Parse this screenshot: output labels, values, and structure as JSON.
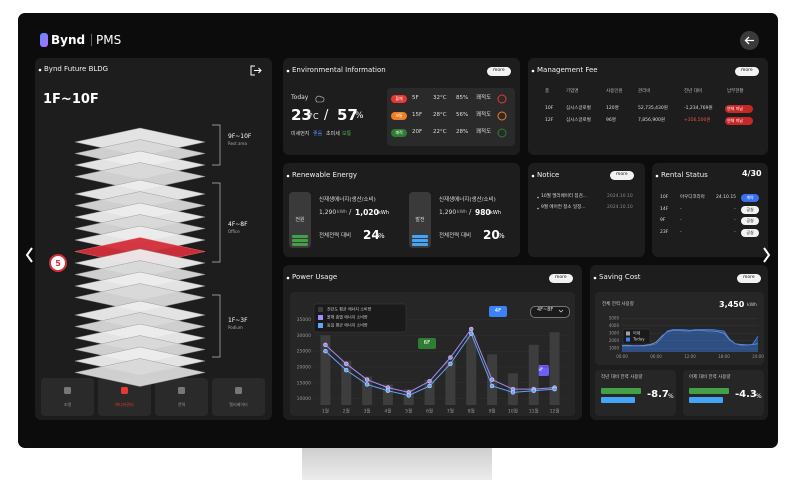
{
  "header": {
    "brand": "Bynd",
    "product": "PMS"
  },
  "building": {
    "title": "Bynd Future BLDG",
    "range": "1F~10F",
    "badge": "5",
    "zones": [
      {
        "floors": "9F~10F",
        "name": "Rest area"
      },
      {
        "floors": "4F~8F",
        "name": "Office"
      },
      {
        "floors": "1F~3F",
        "name": "Podium"
      }
    ],
    "tabs": [
      "조명",
      "에너지관리",
      "전력",
      "엘리베이터"
    ]
  },
  "environment": {
    "title": "Environmental Information",
    "more": "more",
    "today": "Today",
    "temp": "23",
    "temp_unit": "°C",
    "sep": "/",
    "humidity": "57",
    "humidity_unit": "%",
    "air": [
      "미세먼지",
      "좋음",
      "초미세",
      "보통"
    ],
    "rows": [
      [
        "불쾌",
        "5F",
        "32°C",
        "85%",
        "쾌적도"
      ],
      [
        "보통",
        "15F",
        "28°C",
        "56%",
        "쾌적도"
      ],
      [
        "쾌적",
        "20F",
        "22°C",
        "28%",
        "쾌적도"
      ]
    ]
  },
  "management_fee": {
    "title": "Management Fee",
    "more": "more",
    "headers": [
      "층",
      "기업명",
      "사용인원",
      "관리비",
      "전년 대비",
      "납부현황"
    ],
    "rows": [
      [
        "10F",
        "심시스글로벌",
        "120명",
        "52,735,430원",
        "-1,234,769원",
        "연체 미납"
      ],
      [
        "12F",
        "심시스글로벌",
        "96명",
        "7,856,900원",
        "+356,500원",
        "연체 미납"
      ]
    ]
  },
  "renewable": {
    "title": "Renewable Energy",
    "items": [
      {
        "tag": "전원",
        "label": "신재생에너지(생산/소비)",
        "produced": "1,290",
        "produced_unit": "kWh",
        "sep": "/",
        "consumed": "1,020",
        "consumed_unit": "kWh",
        "ratio_label": "전체전력 대비",
        "ratio": "24",
        "ratio_unit": "%"
      },
      {
        "tag": "발전",
        "label": "신재생에너지(생산/소비)",
        "produced": "1,290",
        "produced_unit": "kWh",
        "sep": "/",
        "consumed": "980",
        "consumed_unit": "kWh",
        "ratio_label": "전체전력 대비",
        "ratio": "20",
        "ratio_unit": "%"
      }
    ]
  },
  "notice": {
    "title": "Notice",
    "more": "more",
    "items": [
      {
        "text": "10월 엘리베이터 점검...",
        "date": "2024.10.10"
      },
      {
        "text": "9월 에어컨 청소 일정...",
        "date": "2024.10.10"
      }
    ]
  },
  "rental": {
    "title": "Rental Status",
    "count": "4/30",
    "rows": [
      [
        "10F",
        "아우디코리아",
        "24.10.15",
        "계약"
      ],
      [
        "14F",
        "-",
        "-",
        "공실"
      ],
      [
        "9F",
        "-",
        "-",
        "공실"
      ],
      [
        "23F",
        "-",
        "-",
        "공실"
      ]
    ]
  },
  "power_usage": {
    "title": "Power Usage",
    "more": "more",
    "dropdown": "4F~8F",
    "callouts": [
      "4F",
      "6F",
      "5F"
    ],
    "chart": {
      "type": "bar",
      "categories": [
        "1월",
        "2월",
        "3월",
        "4월",
        "5월",
        "6월",
        "7월",
        "8월",
        "9월",
        "10월",
        "11월",
        "12월"
      ],
      "ylim": [
        8000,
        38000
      ],
      "yticks": [
        10000,
        15000,
        20000,
        25000,
        30000,
        35000
      ],
      "series": [
        {
          "name": "전년도 평균 에너지 소비량",
          "type": "bar",
          "color": "#3d3d3d",
          "values": [
            30000,
            22000,
            17000,
            14500,
            13000,
            16000,
            22000,
            30000,
            24000,
            18000,
            27000,
            31000
          ]
        },
        {
          "name": "올해 층별 에너지 소비량",
          "type": "line",
          "color": "#a78bfa",
          "values": [
            27000,
            21000,
            16000,
            13500,
            12000,
            15500,
            23000,
            32000,
            16000,
            13000,
            13000,
            13500
          ]
        },
        {
          "name": "동일 평균 에너지 소비량",
          "type": "line",
          "color": "#60a5fa",
          "values": [
            25000,
            19000,
            14500,
            12500,
            11000,
            14000,
            21000,
            30500,
            14000,
            12000,
            12500,
            13000
          ]
        }
      ]
    }
  },
  "saving_cost": {
    "title": "Saving Cost",
    "more": "more",
    "total_label": "전체 전력 사용량",
    "total": "3,450",
    "total_unit": "kWh",
    "chart": {
      "type": "area",
      "x": [
        0,
        1,
        2,
        3,
        4,
        5,
        6,
        7,
        8,
        9,
        10,
        11,
        12,
        13,
        14,
        15,
        16,
        17,
        18,
        19,
        20,
        21,
        22,
        23,
        24
      ],
      "xlim": [
        0,
        24
      ],
      "xticks": [
        {
          "value": 0,
          "label": "00:00"
        },
        {
          "value": 6,
          "label": "06:00"
        },
        {
          "value": 12,
          "label": "12:00"
        },
        {
          "value": 18,
          "label": "18:00"
        },
        {
          "value": 24,
          "label": "24:00"
        }
      ],
      "ylim": [
        500,
        5300
      ],
      "yticks": [
        1000,
        2000,
        3000,
        4000,
        5000
      ],
      "series": [
        {
          "name": "어제",
          "color": "#9ca3af",
          "values": [
            1400,
            1400,
            1350,
            1350,
            1400,
            1500,
            1800,
            2600,
            3200,
            3400,
            3400,
            3300,
            3300,
            3400,
            3400,
            3300,
            3300,
            3200,
            3000,
            2100,
            1600,
            1500,
            1450,
            1500,
            1600
          ]
        },
        {
          "name": "Today",
          "color": "#3b82f6",
          "values": [
            1300,
            1300,
            1300,
            1300,
            1300,
            1400,
            1600,
            2400,
            3300,
            3500,
            3500,
            3500,
            3400,
            3500,
            3500,
            3500,
            3500,
            3400,
            3300,
            2200,
            1600,
            1400,
            1400,
            1500,
            2600
          ]
        }
      ]
    },
    "compare": [
      {
        "label": "작년 대비 전력 사용량",
        "value": "-8.7",
        "unit": "%"
      },
      {
        "label": "어제 대비 전력 사용량",
        "value": "-4.3",
        "unit": "%"
      }
    ]
  }
}
